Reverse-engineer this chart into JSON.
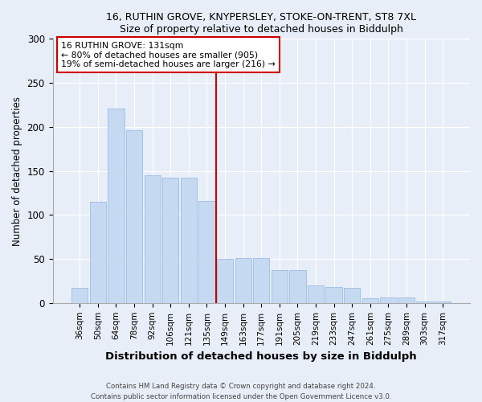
{
  "title1": "16, RUTHIN GROVE, KNYPERSLEY, STOKE-ON-TRENT, ST8 7XL",
  "title2": "Size of property relative to detached houses in Biddulph",
  "xlabel": "Distribution of detached houses by size in Biddulph",
  "ylabel": "Number of detached properties",
  "categories": [
    "36sqm",
    "50sqm",
    "64sqm",
    "78sqm",
    "92sqm",
    "106sqm",
    "121sqm",
    "135sqm",
    "149sqm",
    "163sqm",
    "177sqm",
    "191sqm",
    "205sqm",
    "219sqm",
    "233sqm",
    "247sqm",
    "261sqm",
    "275sqm",
    "289sqm",
    "303sqm",
    "317sqm"
  ],
  "values": [
    17,
    115,
    221,
    196,
    145,
    142,
    142,
    116,
    50,
    51,
    51,
    37,
    37,
    20,
    18,
    17,
    5,
    6,
    6,
    2,
    2
  ],
  "bar_color": "#c5d9f1",
  "bar_edge_color": "#8eb4e3",
  "vline_x": 7.5,
  "vline_label": "16 RUTHIN GROVE: 131sqm",
  "annotation_line1": "← 80% of detached houses are smaller (905)",
  "annotation_line2": "19% of semi-detached houses are larger (216) →",
  "annotation_box_color": "#ffffff",
  "annotation_box_edge": "#cc0000",
  "vline_color": "#cc0000",
  "footer1": "Contains HM Land Registry data © Crown copyright and database right 2024.",
  "footer2": "Contains public sector information licensed under the Open Government Licence v3.0.",
  "bg_color": "#e8eef8",
  "ylim": [
    0,
    300
  ],
  "yticks": [
    0,
    50,
    100,
    150,
    200,
    250,
    300
  ]
}
